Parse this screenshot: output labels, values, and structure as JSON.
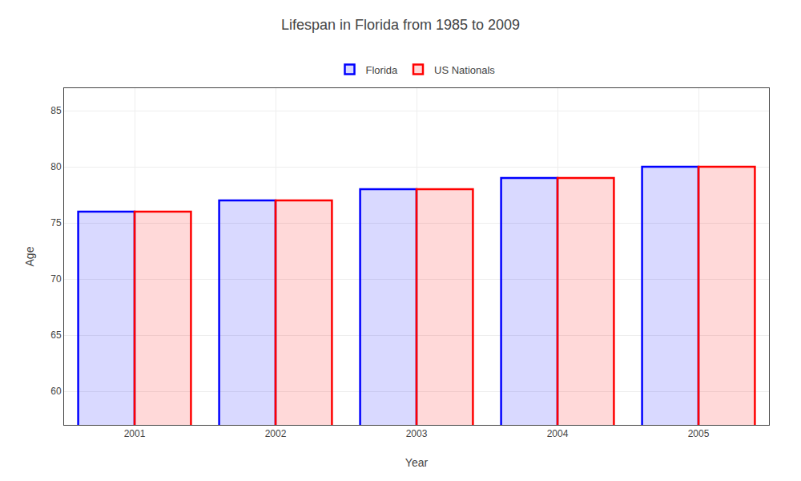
{
  "chart_data": {
    "type": "bar",
    "title": "Lifespan in Florida from 1985 to 2009",
    "xlabel": "Year",
    "ylabel": "Age",
    "categories": [
      "2001",
      "2002",
      "2003",
      "2004",
      "2005"
    ],
    "series": [
      {
        "name": "Florida",
        "color": "#0000ff",
        "values": [
          76,
          77,
          78,
          79,
          80
        ]
      },
      {
        "name": "US Nationals",
        "color": "#ff0000",
        "values": [
          76,
          77,
          78,
          79,
          80
        ]
      }
    ],
    "ylim": [
      57,
      87
    ],
    "yticks": [
      60,
      65,
      70,
      75,
      80,
      85
    ],
    "grid": true,
    "legend": "top"
  }
}
